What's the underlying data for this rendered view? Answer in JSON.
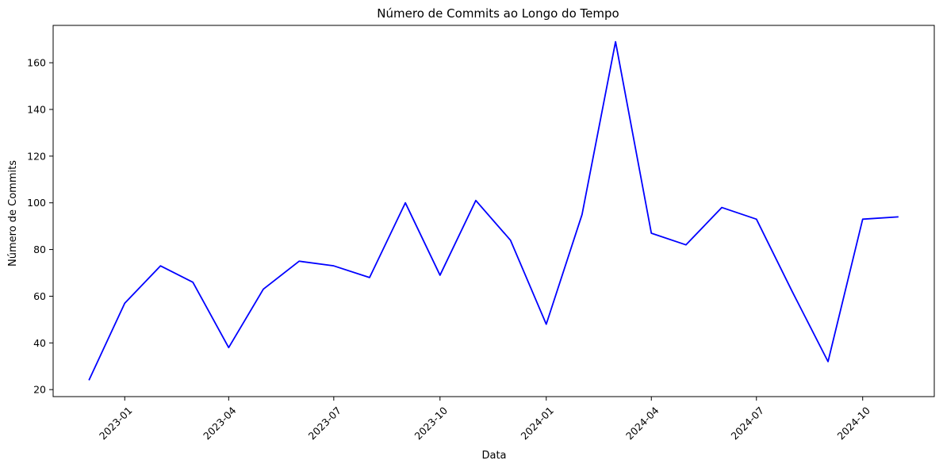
{
  "chart_data": {
    "type": "line",
    "title": "Número de Commits ao Longo do Tempo",
    "xlabel": "Data",
    "ylabel": "Número de Commits",
    "x_type": "date",
    "x": [
      "2022-12-01",
      "2023-01-01",
      "2023-02-01",
      "2023-03-01",
      "2023-04-01",
      "2023-05-01",
      "2023-06-01",
      "2023-07-01",
      "2023-08-01",
      "2023-09-01",
      "2023-10-01",
      "2023-11-01",
      "2023-12-01",
      "2024-01-01",
      "2024-02-01",
      "2024-03-01",
      "2024-04-01",
      "2024-05-01",
      "2024-06-01",
      "2024-07-01",
      "2024-08-01",
      "2024-09-01",
      "2024-10-01",
      "2024-11-01"
    ],
    "series": [
      {
        "color": "#0000ff",
        "values": [
          24,
          57,
          73,
          66,
          38,
          63,
          75,
          73,
          68,
          100,
          69,
          101,
          84,
          48,
          95,
          169,
          87,
          82,
          98,
          93,
          62,
          32,
          93,
          94
        ]
      }
    ],
    "xlim": [
      "2022-10-31",
      "2024-12-02"
    ],
    "ylim": [
      17,
      176
    ],
    "x_ticks": [
      "2023-01",
      "2023-04",
      "2023-07",
      "2023-10",
      "2024-01",
      "2024-04",
      "2024-07",
      "2024-10"
    ],
    "y_ticks": [
      20,
      40,
      60,
      80,
      100,
      120,
      140,
      160
    ],
    "x_tick_rotation": 45,
    "grid": false,
    "legend": "none"
  }
}
